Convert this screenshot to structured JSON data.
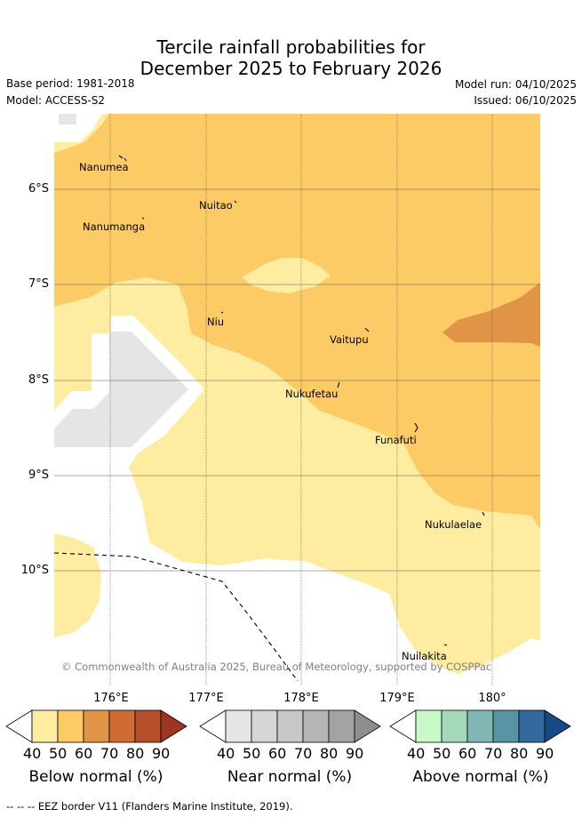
{
  "header": {
    "title_line1": "Tercile rainfall probabilities for",
    "title_line2": "December 2025 to February 2026",
    "base_period": "Base period: 1981-2018",
    "model": "Model: ACCESS-S2",
    "model_run": "Model run: 04/10/2025",
    "issued": "Issued: 06/10/2025"
  },
  "map": {
    "lat_ticks": [
      "6°S",
      "7°S",
      "8°S",
      "9°S",
      "10°S"
    ],
    "lon_ticks": [
      "176°E",
      "177°E",
      "178°E",
      "179°E",
      "180°"
    ],
    "places": [
      "Nanumea",
      "Nuitao",
      "Nanumanga",
      "Niu",
      "Vaitupu",
      "Nukufetau",
      "Funafuti",
      "Nukulaelae",
      "Nuilakita"
    ],
    "copyright": "© Commonwealth of Australia 2025, Bureau of Meteorology, supported by COSPPac",
    "colors": {
      "below_50": "#feeca0",
      "below_60": "#fdcb66",
      "below_70": "#e09448",
      "near_40": "#e5e5e5",
      "sea_bg": "#ffffff"
    }
  },
  "colorbars": [
    {
      "title": "Below normal (%)",
      "ticks": [
        "40",
        "50",
        "60",
        "70",
        "80",
        "90"
      ],
      "colors": [
        "#ffffff",
        "#feeca0",
        "#fdcb66",
        "#e09448",
        "#d06b35",
        "#b54e2a",
        "#9b3622"
      ]
    },
    {
      "title": "Near normal (%)",
      "ticks": [
        "40",
        "50",
        "60",
        "70",
        "80",
        "90"
      ],
      "colors": [
        "#ffffff",
        "#e5e5e5",
        "#d6d6d6",
        "#c7c7c7",
        "#b5b5b5",
        "#a3a3a3",
        "#8e8e8e"
      ]
    },
    {
      "title": "Above normal (%)",
      "ticks": [
        "40",
        "50",
        "60",
        "70",
        "80",
        "90"
      ],
      "colors": [
        "#ffffff",
        "#c9f9c9",
        "#a4d8b9",
        "#82b8b3",
        "#5a94a4",
        "#33699c",
        "#154a86"
      ]
    }
  ],
  "footer": {
    "eez_legend": "--  --  -- EEZ border V11 (Flanders Marine Institute, 2019)."
  }
}
